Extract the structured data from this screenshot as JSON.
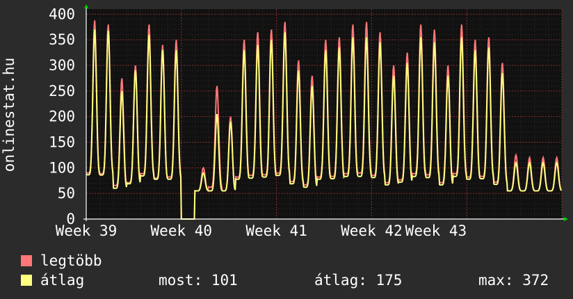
{
  "chart_data": {
    "type": "line",
    "ylabel": "onlinestat.hu",
    "ylim": [
      0,
      410
    ],
    "yticks": [
      0,
      50,
      100,
      150,
      200,
      250,
      300,
      350,
      400
    ],
    "xticks": [
      "Week 39",
      "Week 40",
      "Week 41",
      "Week 42",
      "Week 43"
    ],
    "grid": true,
    "legend_placement": "bottom-left",
    "days": 35,
    "series": [
      {
        "name": "legtöbb",
        "color": "#ff7777",
        "daily_peaks": [
          388,
          380,
          275,
          300,
          380,
          340,
          350,
          0,
          100,
          260,
          200,
          350,
          365,
          370,
          385,
          310,
          280,
          350,
          355,
          380,
          385,
          365,
          300,
          325,
          380,
          370,
          300,
          380,
          350,
          355,
          305,
          125,
          120,
          120,
          120
        ]
      },
      {
        "name": "átlag",
        "color": "#ffff80",
        "daily_peaks": [
          370,
          368,
          250,
          290,
          360,
          330,
          330,
          0,
          90,
          205,
          190,
          330,
          340,
          350,
          365,
          290,
          260,
          330,
          335,
          355,
          355,
          345,
          280,
          305,
          355,
          345,
          280,
          355,
          330,
          335,
          285,
          110,
          110,
          110,
          110
        ]
      }
    ]
  },
  "legend": {
    "items": [
      {
        "label": "legtöbb",
        "color": "#ff7777"
      },
      {
        "label": "átlag",
        "color": "#ffff80"
      }
    ]
  },
  "stats": {
    "most": "most: 101",
    "atlag": "átlag: 175",
    "max": "max: 372"
  }
}
